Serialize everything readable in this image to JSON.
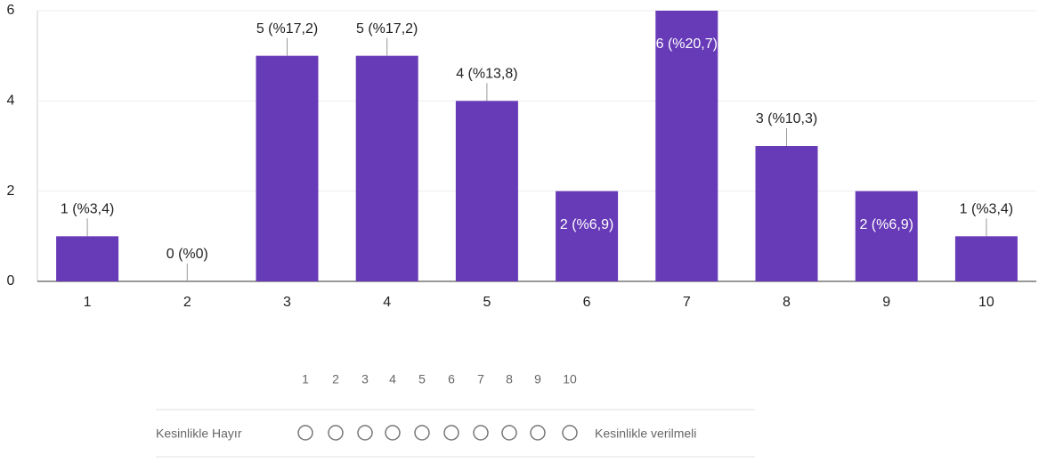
{
  "chart_data": {
    "type": "bar",
    "categories": [
      "1",
      "2",
      "3",
      "4",
      "5",
      "6",
      "7",
      "8",
      "9",
      "10"
    ],
    "values": [
      1,
      0,
      5,
      5,
      4,
      2,
      6,
      3,
      2,
      1
    ],
    "value_labels": [
      "1 (%3,4)",
      "0 (%0)",
      "5 (%17,2)",
      "5 (%17,2)",
      "4 (%13,8)",
      "2 (%6,9)",
      "6 (%20,7)",
      "3 (%10,3)",
      "2 (%6,9)",
      "1 (%3,4)"
    ],
    "color": "#673ab7",
    "ylim": [
      0,
      6
    ],
    "yticks": [
      0,
      2,
      4,
      6
    ],
    "grid": true
  },
  "scale": {
    "options": [
      "1",
      "2",
      "3",
      "4",
      "5",
      "6",
      "7",
      "8",
      "9",
      "10"
    ],
    "low_label": "Kesinlikle Hayır",
    "high_label": "Kesinlikle verilmeli"
  }
}
